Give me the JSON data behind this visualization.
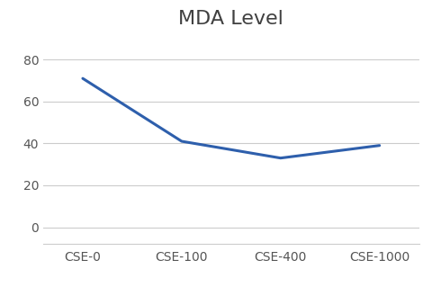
{
  "title": "MDA Level",
  "x_labels": [
    "CSE-0",
    "CSE-100",
    "CSE-400",
    "CSE-1000"
  ],
  "y_values": [
    71,
    41,
    33,
    39
  ],
  "line_color": "#2E5FAC",
  "line_width": 2.2,
  "ylim": [
    -8,
    92
  ],
  "yticks": [
    0,
    20,
    40,
    60,
    80
  ],
  "title_fontsize": 16,
  "title_color": "#404040",
  "tick_fontsize": 10,
  "tick_color": "#555555",
  "background_color": "#ffffff",
  "grid_color": "#cccccc"
}
